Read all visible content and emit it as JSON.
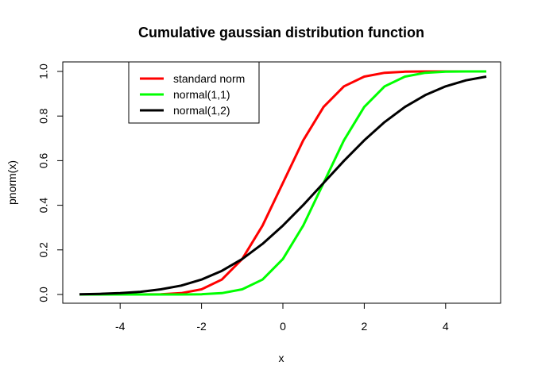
{
  "chart_data": {
    "type": "line",
    "title": "Cumulative gaussian distribution function",
    "xlabel": "x",
    "ylabel": "pnorm(x)",
    "xlim": [
      -5,
      5
    ],
    "ylim": [
      0,
      1
    ],
    "x_ticks": [
      -4,
      -2,
      0,
      2,
      4
    ],
    "x_tick_labels": [
      "-4",
      "-2",
      "0",
      "2",
      "4"
    ],
    "y_ticks": [
      0.0,
      0.2,
      0.4,
      0.6,
      0.8,
      1.0
    ],
    "y_tick_labels": [
      "0.0",
      "0.2",
      "0.4",
      "0.6",
      "0.8",
      "1.0"
    ],
    "grid": false,
    "legend_position": "top-left",
    "x": [
      -5,
      -4.5,
      -4,
      -3.5,
      -3,
      -2.5,
      -2,
      -1.5,
      -1,
      -0.5,
      0,
      0.5,
      1,
      1.5,
      2,
      2.5,
      3,
      3.5,
      4,
      4.5,
      5
    ],
    "series": [
      {
        "name": "standard norm",
        "color": "#ff0000",
        "values": [
          0.0,
          0.0,
          0.0,
          0.0,
          0.001,
          0.006,
          0.023,
          0.067,
          0.159,
          0.309,
          0.5,
          0.691,
          0.841,
          0.933,
          0.977,
          0.994,
          0.999,
          1.0,
          1.0,
          1.0,
          1.0
        ]
      },
      {
        "name": "normal(1,1)",
        "color": "#00ff00",
        "values": [
          0.0,
          0.0,
          0.0,
          0.0,
          0.0,
          0.0,
          0.001,
          0.006,
          0.023,
          0.067,
          0.159,
          0.309,
          0.5,
          0.691,
          0.841,
          0.933,
          0.977,
          0.994,
          0.999,
          1.0,
          1.0
        ]
      },
      {
        "name": "normal(1,2)",
        "color": "#000000",
        "values": [
          0.001,
          0.003,
          0.006,
          0.012,
          0.023,
          0.04,
          0.067,
          0.106,
          0.159,
          0.227,
          0.309,
          0.401,
          0.5,
          0.599,
          0.691,
          0.773,
          0.841,
          0.894,
          0.933,
          0.96,
          0.977
        ]
      }
    ]
  }
}
